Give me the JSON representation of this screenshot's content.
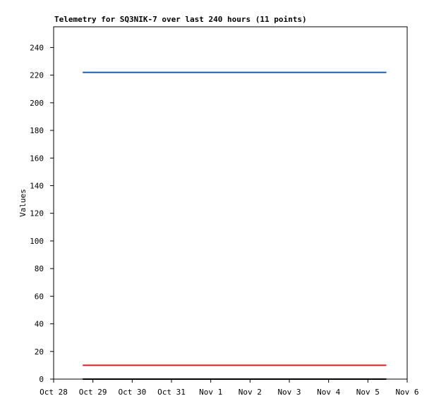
{
  "chart_data": {
    "type": "line",
    "title": "Telemetry for SQ3NIK-7 over last 240 hours (11 points)",
    "y_label": "Values",
    "x": [
      0.74,
      1.51,
      2.29,
      3.06,
      3.83,
      4.61,
      5.38,
      6.15,
      6.92,
      7.7,
      8.47
    ],
    "series": [
      {
        "color": "#1f5fa8",
        "values": [
          222,
          222,
          222,
          222,
          222,
          222,
          222,
          222,
          222,
          222,
          222
        ]
      },
      {
        "color": "#e31a1c",
        "values": [
          10,
          10,
          10,
          10,
          10,
          10,
          10,
          10,
          10,
          10,
          10
        ]
      },
      {
        "color": "#000000",
        "values": [
          0,
          0,
          0,
          0,
          0,
          0,
          0,
          0,
          0,
          0,
          0
        ]
      }
    ],
    "xlim": [
      0,
      9
    ],
    "xticks": [
      {
        "value": 0,
        "label": "Oct 28"
      },
      {
        "value": 1,
        "label": "Oct 29"
      },
      {
        "value": 2,
        "label": "Oct 30"
      },
      {
        "value": 3,
        "label": "Oct 31"
      },
      {
        "value": 4,
        "label": "Nov 1"
      },
      {
        "value": 5,
        "label": "Nov 2"
      },
      {
        "value": 6,
        "label": "Nov 3"
      },
      {
        "value": 7,
        "label": "Nov 4"
      },
      {
        "value": 8,
        "label": "Nov 5"
      },
      {
        "value": 9,
        "label": "Nov 6"
      }
    ],
    "ylim": [
      0,
      255
    ],
    "yticks": [
      0,
      20,
      40,
      60,
      80,
      100,
      120,
      140,
      160,
      180,
      200,
      220,
      240
    ],
    "grid": false
  }
}
